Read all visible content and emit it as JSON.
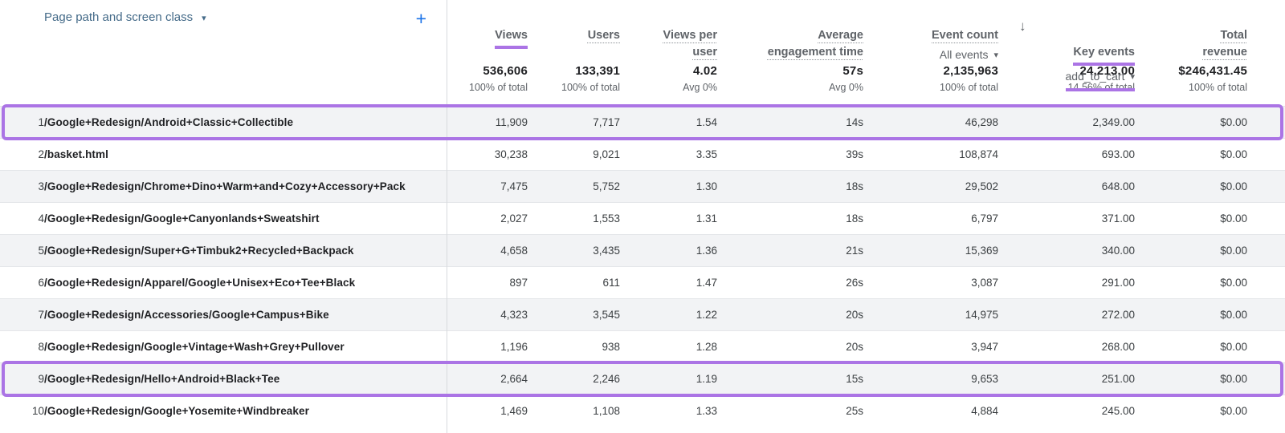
{
  "accent": {
    "purple": "#ab74e5",
    "blue": "#1a73e8"
  },
  "header": {
    "dimension_label": "Page path and screen class",
    "dimension_caret_icon": "chevron-down-icon",
    "add_button_label": "+",
    "sort_arrow_icon": "arrow-down-icon",
    "columns": [
      {
        "id": "views",
        "label": "Views",
        "underline": "purple"
      },
      {
        "id": "users",
        "label": "Users",
        "underline": "dotted"
      },
      {
        "id": "views_per_user",
        "label": "Views per\nuser",
        "underline": "dotted"
      },
      {
        "id": "avg_engagement",
        "label": "Average\nengagement time",
        "underline": "dotted"
      },
      {
        "id": "event_count",
        "label": "Event count",
        "sub": "All events",
        "underline": "dotted"
      },
      {
        "id": "key_events",
        "label": "Key events",
        "sub": "add_to_cart",
        "underline": "purple",
        "sorted": "descending"
      },
      {
        "id": "total_revenue",
        "label": "Total\nrevenue",
        "underline": "dotted"
      }
    ]
  },
  "totals": {
    "views": {
      "value": "536,606",
      "sub": "100% of total"
    },
    "users": {
      "value": "133,391",
      "sub": "100% of total"
    },
    "views_per_user": {
      "value": "4.02",
      "sub": "Avg 0%"
    },
    "avg_engagement": {
      "value": "57s",
      "sub": "Avg 0%"
    },
    "event_count": {
      "value": "2,135,963",
      "sub": "100% of total"
    },
    "key_events": {
      "value": "24,213.00",
      "sub": "14.56% of total"
    },
    "total_revenue": {
      "value": "$246,431.45",
      "sub": "100% of total"
    }
  },
  "rows": [
    {
      "num": "1",
      "path": "/Google+Redesign/Android+Classic+Collectible",
      "views": "11,909",
      "users": "7,717",
      "views_per_user": "1.54",
      "avg_engagement": "14s",
      "event_count": "46,298",
      "key_events": "2,349.00",
      "total_revenue": "$0.00",
      "highlighted": true
    },
    {
      "num": "2",
      "path": "/basket.html",
      "views": "30,238",
      "users": "9,021",
      "views_per_user": "3.35",
      "avg_engagement": "39s",
      "event_count": "108,874",
      "key_events": "693.00",
      "total_revenue": "$0.00",
      "highlighted": false
    },
    {
      "num": "3",
      "path": "/Google+Redesign/Chrome+Dino+Warm+and+Cozy+Accessory+Pack",
      "views": "7,475",
      "users": "5,752",
      "views_per_user": "1.30",
      "avg_engagement": "18s",
      "event_count": "29,502",
      "key_events": "648.00",
      "total_revenue": "$0.00",
      "highlighted": false
    },
    {
      "num": "4",
      "path": "/Google+Redesign/Google+Canyonlands+Sweatshirt",
      "views": "2,027",
      "users": "1,553",
      "views_per_user": "1.31",
      "avg_engagement": "18s",
      "event_count": "6,797",
      "key_events": "371.00",
      "total_revenue": "$0.00",
      "highlighted": false
    },
    {
      "num": "5",
      "path": "/Google+Redesign/Super+G+Timbuk2+Recycled+Backpack",
      "views": "4,658",
      "users": "3,435",
      "views_per_user": "1.36",
      "avg_engagement": "21s",
      "event_count": "15,369",
      "key_events": "340.00",
      "total_revenue": "$0.00",
      "highlighted": false
    },
    {
      "num": "6",
      "path": "/Google+Redesign/Apparel/Google+Unisex+Eco+Tee+Black",
      "views": "897",
      "users": "611",
      "views_per_user": "1.47",
      "avg_engagement": "26s",
      "event_count": "3,087",
      "key_events": "291.00",
      "total_revenue": "$0.00",
      "highlighted": false
    },
    {
      "num": "7",
      "path": "/Google+Redesign/Accessories/Google+Campus+Bike",
      "views": "4,323",
      "users": "3,545",
      "views_per_user": "1.22",
      "avg_engagement": "20s",
      "event_count": "14,975",
      "key_events": "272.00",
      "total_revenue": "$0.00",
      "highlighted": false
    },
    {
      "num": "8",
      "path": "/Google+Redesign/Google+Vintage+Wash+Grey+Pullover",
      "views": "1,196",
      "users": "938",
      "views_per_user": "1.28",
      "avg_engagement": "20s",
      "event_count": "3,947",
      "key_events": "268.00",
      "total_revenue": "$0.00",
      "highlighted": false
    },
    {
      "num": "9",
      "path": "/Google+Redesign/Hello+Android+Black+Tee",
      "views": "2,664",
      "users": "2,246",
      "views_per_user": "1.19",
      "avg_engagement": "15s",
      "event_count": "9,653",
      "key_events": "251.00",
      "total_revenue": "$0.00",
      "highlighted": true
    },
    {
      "num": "10",
      "path": "/Google+Redesign/Google+Yosemite+Windbreaker",
      "views": "1,469",
      "users": "1,108",
      "views_per_user": "1.33",
      "avg_engagement": "25s",
      "event_count": "4,884",
      "key_events": "245.00",
      "total_revenue": "$0.00",
      "highlighted": false
    }
  ]
}
